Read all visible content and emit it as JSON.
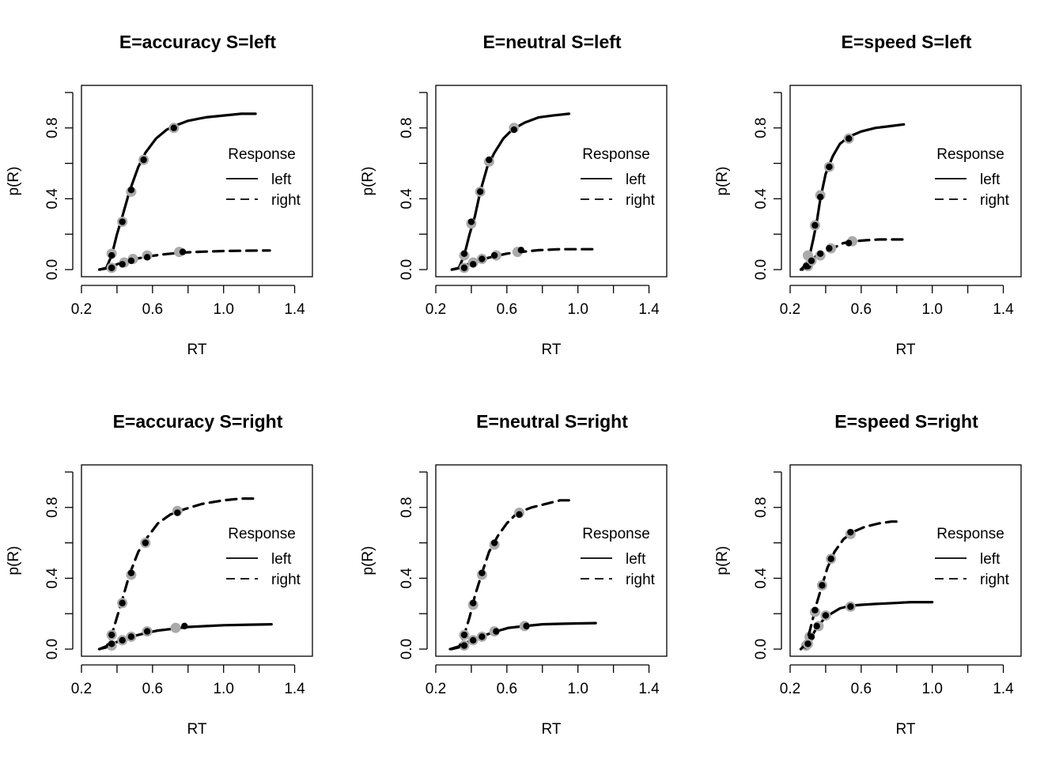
{
  "chart_data": [
    {
      "type": "line",
      "title": "E=accuracy S=left",
      "xlabel": "RT",
      "ylabel": "p(R)",
      "xlim": [
        0.2,
        1.5
      ],
      "ylim": [
        0.0,
        1.0
      ],
      "xticks": [
        "0.2",
        "0.6",
        "1.0",
        "1.4"
      ],
      "yticks": [
        "0.0",
        "0.4",
        "0.8"
      ],
      "legend": {
        "title": "Response",
        "placement": "right",
        "entries": [
          "left",
          "right"
        ]
      },
      "series": [
        {
          "name": "left",
          "style": "solid",
          "x": [
            0.3,
            0.34,
            0.37,
            0.4,
            0.43,
            0.47,
            0.52,
            0.56,
            0.62,
            0.68,
            0.72,
            0.8,
            0.9,
            1.0,
            1.1,
            1.18
          ],
          "y": [
            0.0,
            0.01,
            0.08,
            0.2,
            0.3,
            0.44,
            0.58,
            0.66,
            0.74,
            0.79,
            0.81,
            0.84,
            0.86,
            0.87,
            0.88,
            0.88
          ],
          "points_observed": [
            [
              0.37,
              0.08
            ],
            [
              0.43,
              0.27
            ],
            [
              0.48,
              0.45
            ],
            [
              0.55,
              0.62
            ],
            [
              0.72,
              0.8
            ]
          ],
          "points_predicted": [
            [
              0.37,
              0.09
            ],
            [
              0.43,
              0.27
            ],
            [
              0.48,
              0.44
            ],
            [
              0.55,
              0.62
            ],
            [
              0.72,
              0.8
            ]
          ]
        },
        {
          "name": "right",
          "style": "dashed",
          "x": [
            0.3,
            0.36,
            0.4,
            0.45,
            0.5,
            0.58,
            0.65,
            0.75,
            0.85,
            1.0,
            1.15,
            1.26
          ],
          "y": [
            0.0,
            0.01,
            0.03,
            0.05,
            0.06,
            0.075,
            0.085,
            0.095,
            0.1,
            0.105,
            0.107,
            0.108
          ],
          "points_observed": [
            [
              0.37,
              0.01
            ],
            [
              0.43,
              0.03
            ],
            [
              0.48,
              0.05
            ],
            [
              0.57,
              0.07
            ],
            [
              0.77,
              0.1
            ]
          ],
          "points_predicted": [
            [
              0.37,
              0.01
            ],
            [
              0.44,
              0.04
            ],
            [
              0.49,
              0.06
            ],
            [
              0.57,
              0.08
            ],
            [
              0.75,
              0.1
            ]
          ]
        }
      ]
    },
    {
      "type": "line",
      "title": "E=neutral S=left",
      "xlabel": "RT",
      "ylabel": "p(R)",
      "xlim": [
        0.2,
        1.5
      ],
      "ylim": [
        0.0,
        1.0
      ],
      "xticks": [
        "0.2",
        "0.6",
        "1.0",
        "1.4"
      ],
      "yticks": [
        "0.0",
        "0.4",
        "0.8"
      ],
      "legend": {
        "title": "Response",
        "placement": "right",
        "entries": [
          "left",
          "right"
        ]
      },
      "series": [
        {
          "name": "left",
          "style": "solid",
          "x": [
            0.29,
            0.33,
            0.36,
            0.39,
            0.42,
            0.45,
            0.49,
            0.53,
            0.58,
            0.63,
            0.7,
            0.78,
            0.86,
            0.95
          ],
          "y": [
            0.0,
            0.01,
            0.08,
            0.2,
            0.3,
            0.44,
            0.58,
            0.66,
            0.74,
            0.79,
            0.83,
            0.86,
            0.87,
            0.88
          ],
          "points_observed": [
            [
              0.36,
              0.09
            ],
            [
              0.4,
              0.27
            ],
            [
              0.45,
              0.44
            ],
            [
              0.5,
              0.62
            ],
            [
              0.64,
              0.79
            ]
          ],
          "points_predicted": [
            [
              0.36,
              0.08
            ],
            [
              0.4,
              0.26
            ],
            [
              0.45,
              0.44
            ],
            [
              0.5,
              0.61
            ],
            [
              0.64,
              0.8
            ]
          ]
        },
        {
          "name": "right",
          "style": "dashed",
          "x": [
            0.29,
            0.34,
            0.38,
            0.42,
            0.47,
            0.53,
            0.6,
            0.68,
            0.78,
            0.9,
            1.0,
            1.1
          ],
          "y": [
            0.0,
            0.01,
            0.03,
            0.045,
            0.06,
            0.075,
            0.09,
            0.1,
            0.11,
            0.115,
            0.115,
            0.115
          ],
          "points_observed": [
            [
              0.36,
              0.01
            ],
            [
              0.41,
              0.03
            ],
            [
              0.46,
              0.06
            ],
            [
              0.53,
              0.08
            ],
            [
              0.68,
              0.11
            ]
          ],
          "points_predicted": [
            [
              0.36,
              0.01
            ],
            [
              0.41,
              0.04
            ],
            [
              0.46,
              0.06
            ],
            [
              0.54,
              0.08
            ],
            [
              0.66,
              0.1
            ]
          ]
        }
      ]
    },
    {
      "type": "line",
      "title": "E=speed S=left",
      "xlabel": "RT",
      "ylabel": "p(R)",
      "xlim": [
        0.2,
        1.5
      ],
      "ylim": [
        0.0,
        1.0
      ],
      "xticks": [
        "0.2",
        "0.6",
        "1.0",
        "1.4"
      ],
      "yticks": [
        "0.0",
        "0.4",
        "0.8"
      ],
      "legend": {
        "title": "Response",
        "placement": "right",
        "entries": [
          "left",
          "right"
        ]
      },
      "series": [
        {
          "name": "left",
          "style": "solid",
          "x": [
            0.27,
            0.29,
            0.31,
            0.33,
            0.35,
            0.37,
            0.4,
            0.44,
            0.48,
            0.53,
            0.6,
            0.68,
            0.76,
            0.84
          ],
          "y": [
            0.0,
            0.02,
            0.08,
            0.17,
            0.27,
            0.4,
            0.54,
            0.64,
            0.71,
            0.75,
            0.78,
            0.8,
            0.81,
            0.82
          ],
          "points_observed": [
            [
              0.3,
              0.02
            ],
            [
              0.34,
              0.25
            ],
            [
              0.37,
              0.41
            ],
            [
              0.42,
              0.58
            ],
            [
              0.53,
              0.74
            ]
          ],
          "points_predicted": [
            [
              0.3,
              0.02
            ],
            [
              0.34,
              0.25
            ],
            [
              0.37,
              0.42
            ],
            [
              0.42,
              0.58
            ],
            [
              0.53,
              0.74
            ]
          ]
        },
        {
          "name": "right",
          "style": "dashed",
          "x": [
            0.26,
            0.29,
            0.32,
            0.35,
            0.39,
            0.44,
            0.5,
            0.56,
            0.62,
            0.7,
            0.78,
            0.84
          ],
          "y": [
            0.0,
            0.03,
            0.055,
            0.08,
            0.1,
            0.12,
            0.15,
            0.16,
            0.165,
            0.17,
            0.17,
            0.17
          ],
          "points_observed": [
            [
              0.29,
              0.02
            ],
            [
              0.32,
              0.05
            ],
            [
              0.37,
              0.09
            ],
            [
              0.42,
              0.12
            ],
            [
              0.53,
              0.15
            ]
          ],
          "points_predicted": [
            [
              0.3,
              0.08
            ],
            [
              0.32,
              0.05
            ],
            [
              0.37,
              0.08
            ],
            [
              0.43,
              0.12
            ],
            [
              0.55,
              0.16
            ]
          ]
        }
      ]
    },
    {
      "type": "line",
      "title": "E=accuracy S=right",
      "xlabel": "RT",
      "ylabel": "p(R)",
      "xlim": [
        0.2,
        1.5
      ],
      "ylim": [
        0.0,
        1.0
      ],
      "xticks": [
        "0.2",
        "0.6",
        "1.0",
        "1.4"
      ],
      "yticks": [
        "0.0",
        "0.4",
        "0.8"
      ],
      "legend": {
        "title": "Response",
        "placement": "right",
        "entries": [
          "left",
          "right"
        ]
      },
      "series": [
        {
          "name": "left",
          "style": "solid",
          "x": [
            0.3,
            0.35,
            0.4,
            0.45,
            0.5,
            0.56,
            0.63,
            0.72,
            0.8,
            0.9,
            1.0,
            1.15,
            1.27
          ],
          "y": [
            0.0,
            0.02,
            0.04,
            0.06,
            0.075,
            0.09,
            0.105,
            0.115,
            0.125,
            0.13,
            0.135,
            0.138,
            0.14
          ],
          "points_observed": [
            [
              0.37,
              0.03
            ],
            [
              0.43,
              0.05
            ],
            [
              0.48,
              0.07
            ],
            [
              0.57,
              0.1
            ],
            [
              0.78,
              0.13
            ]
          ],
          "points_predicted": [
            [
              0.37,
              0.02
            ],
            [
              0.43,
              0.05
            ],
            [
              0.48,
              0.07
            ],
            [
              0.57,
              0.1
            ],
            [
              0.73,
              0.12
            ]
          ]
        },
        {
          "name": "right",
          "style": "dashed",
          "x": [
            0.3,
            0.34,
            0.37,
            0.4,
            0.43,
            0.47,
            0.52,
            0.57,
            0.63,
            0.7,
            0.78,
            0.88,
            1.0,
            1.1,
            1.18
          ],
          "y": [
            0.0,
            0.01,
            0.08,
            0.18,
            0.28,
            0.42,
            0.55,
            0.63,
            0.71,
            0.76,
            0.79,
            0.82,
            0.84,
            0.85,
            0.85
          ],
          "points_observed": [
            [
              0.37,
              0.08
            ],
            [
              0.43,
              0.26
            ],
            [
              0.48,
              0.43
            ],
            [
              0.56,
              0.6
            ],
            [
              0.74,
              0.77
            ]
          ],
          "points_predicted": [
            [
              0.37,
              0.08
            ],
            [
              0.43,
              0.26
            ],
            [
              0.48,
              0.42
            ],
            [
              0.56,
              0.6
            ],
            [
              0.74,
              0.78
            ]
          ]
        }
      ]
    },
    {
      "type": "line",
      "title": "E=neutral S=right",
      "xlabel": "RT",
      "ylabel": "p(R)",
      "xlim": [
        0.2,
        1.5
      ],
      "ylim": [
        0.0,
        1.0
      ],
      "xticks": [
        "0.2",
        "0.6",
        "1.0",
        "1.4"
      ],
      "yticks": [
        "0.0",
        "0.4",
        "0.8"
      ],
      "legend": {
        "title": "Response",
        "placement": "right",
        "entries": [
          "left",
          "right"
        ]
      },
      "series": [
        {
          "name": "left",
          "style": "solid",
          "x": [
            0.28,
            0.33,
            0.38,
            0.43,
            0.48,
            0.54,
            0.61,
            0.7,
            0.8,
            0.9,
            1.0,
            1.1
          ],
          "y": [
            0.0,
            0.015,
            0.04,
            0.06,
            0.08,
            0.1,
            0.12,
            0.13,
            0.14,
            0.143,
            0.145,
            0.147
          ],
          "points_observed": [
            [
              0.36,
              0.02
            ],
            [
              0.41,
              0.05
            ],
            [
              0.46,
              0.07
            ],
            [
              0.54,
              0.1
            ],
            [
              0.71,
              0.13
            ]
          ],
          "points_predicted": [
            [
              0.36,
              0.02
            ],
            [
              0.41,
              0.05
            ],
            [
              0.46,
              0.07
            ],
            [
              0.53,
              0.1
            ],
            [
              0.7,
              0.13
            ]
          ]
        },
        {
          "name": "right",
          "style": "dashed",
          "x": [
            0.29,
            0.33,
            0.36,
            0.39,
            0.42,
            0.46,
            0.5,
            0.55,
            0.6,
            0.66,
            0.74,
            0.82,
            0.9,
            0.95
          ],
          "y": [
            0.0,
            0.01,
            0.08,
            0.18,
            0.3,
            0.43,
            0.55,
            0.64,
            0.71,
            0.77,
            0.8,
            0.82,
            0.84,
            0.84
          ],
          "points_observed": [
            [
              0.36,
              0.08
            ],
            [
              0.41,
              0.26
            ],
            [
              0.46,
              0.43
            ],
            [
              0.53,
              0.6
            ],
            [
              0.67,
              0.76
            ]
          ],
          "points_predicted": [
            [
              0.36,
              0.08
            ],
            [
              0.41,
              0.25
            ],
            [
              0.46,
              0.42
            ],
            [
              0.53,
              0.59
            ],
            [
              0.67,
              0.77
            ]
          ]
        }
      ]
    },
    {
      "type": "line",
      "title": "E=speed S=right",
      "xlabel": "RT",
      "ylabel": "p(R)",
      "xlim": [
        0.2,
        1.5
      ],
      "ylim": [
        0.0,
        1.0
      ],
      "xticks": [
        "0.2",
        "0.6",
        "1.0",
        "1.4"
      ],
      "yticks": [
        "0.0",
        "0.4",
        "0.8"
      ],
      "legend": {
        "title": "Response",
        "placement": "right",
        "entries": [
          "left",
          "right"
        ]
      },
      "series": [
        {
          "name": "left",
          "style": "solid",
          "x": [
            0.26,
            0.29,
            0.32,
            0.35,
            0.39,
            0.43,
            0.48,
            0.54,
            0.6,
            0.68,
            0.78,
            0.88,
            1.0
          ],
          "y": [
            0.0,
            0.03,
            0.07,
            0.12,
            0.17,
            0.2,
            0.23,
            0.245,
            0.25,
            0.255,
            0.26,
            0.265,
            0.265
          ],
          "points_observed": [
            [
              0.29,
              0.02
            ],
            [
              0.32,
              0.07
            ],
            [
              0.35,
              0.13
            ],
            [
              0.4,
              0.19
            ],
            [
              0.54,
              0.24
            ]
          ],
          "points_predicted": [
            [
              0.29,
              0.02
            ],
            [
              0.31,
              0.07
            ],
            [
              0.36,
              0.13
            ],
            [
              0.4,
              0.19
            ],
            [
              0.54,
              0.24
            ]
          ]
        },
        {
          "name": "right",
          "style": "dashed",
          "x": [
            0.26,
            0.29,
            0.31,
            0.33,
            0.35,
            0.38,
            0.41,
            0.45,
            0.5,
            0.55,
            0.62,
            0.7,
            0.77,
            0.83
          ],
          "y": [
            0.0,
            0.03,
            0.1,
            0.18,
            0.26,
            0.36,
            0.46,
            0.55,
            0.62,
            0.66,
            0.69,
            0.71,
            0.72,
            0.72
          ],
          "points_observed": [
            [
              0.3,
              0.03
            ],
            [
              0.34,
              0.22
            ],
            [
              0.38,
              0.36
            ],
            [
              0.43,
              0.51
            ],
            [
              0.54,
              0.66
            ]
          ],
          "points_predicted": [
            [
              0.3,
              0.03
            ],
            [
              0.34,
              0.21
            ],
            [
              0.38,
              0.36
            ],
            [
              0.43,
              0.51
            ],
            [
              0.54,
              0.65
            ]
          ]
        }
      ]
    }
  ]
}
